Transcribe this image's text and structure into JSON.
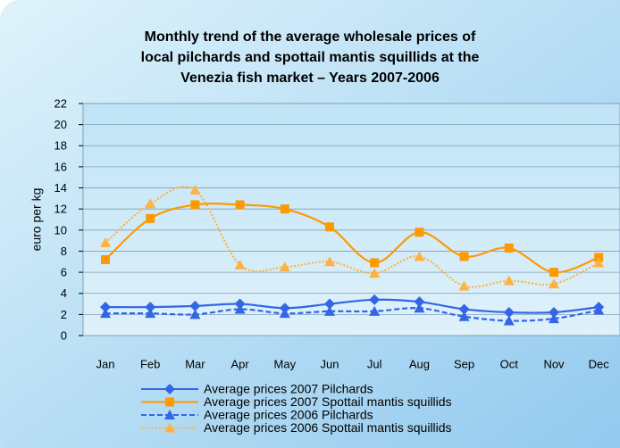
{
  "chart_data": {
    "type": "line",
    "title": [
      "Monthly trend of the average wholesale prices of",
      "local pilchards and spottail mantis squillids at the",
      "Venezia fish market – Years 2007-2006"
    ],
    "y_label": "euro per kg",
    "categories": [
      "Jan",
      "Feb",
      "Mar",
      "Apr",
      "May",
      "Jun",
      "Jul",
      "Aug",
      "Sep",
      "Oct",
      "Nov",
      "Dec"
    ],
    "ylim": [
      0,
      22
    ],
    "yticks": [
      0,
      2,
      4,
      6,
      8,
      10,
      12,
      14,
      16,
      18,
      20,
      22
    ],
    "grid": true,
    "legend": "bottom",
    "series": [
      {
        "name": "Average prices 2007 Pilchards",
        "color": "#3366e6",
        "marker": "diamond",
        "dash": "solid",
        "values": [
          2.7,
          2.7,
          2.8,
          3.0,
          2.6,
          3.0,
          3.4,
          3.2,
          2.5,
          2.2,
          2.2,
          2.7
        ]
      },
      {
        "name": "Average prices 2007 Spottail mantis squillids",
        "color": "#ff9900",
        "marker": "square",
        "dash": "solid",
        "values": [
          7.2,
          11.1,
          12.4,
          12.4,
          12.0,
          10.3,
          6.9,
          9.8,
          7.5,
          8.3,
          6.0,
          7.4
        ]
      },
      {
        "name": "Average prices 2006 Pilchards",
        "color": "#3366e6",
        "marker": "triangle",
        "dash": "dashed",
        "values": [
          2.1,
          2.1,
          2.0,
          2.5,
          2.1,
          2.3,
          2.3,
          2.6,
          1.8,
          1.4,
          1.6,
          2.4
        ]
      },
      {
        "name": "Average prices 2006 Spottail mantis squillids",
        "color": "#ffb240",
        "marker": "triangle",
        "dash": "dotted",
        "values": [
          8.8,
          12.5,
          13.8,
          6.7,
          6.5,
          7.0,
          5.9,
          7.5,
          4.7,
          5.2,
          4.9,
          6.9
        ]
      }
    ]
  }
}
